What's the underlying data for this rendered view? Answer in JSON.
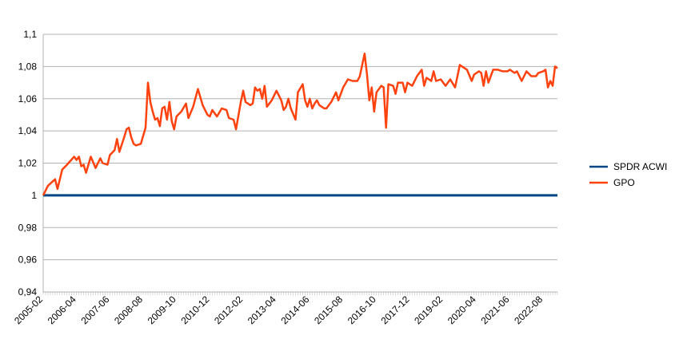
{
  "chart_data": {
    "type": "line",
    "title": "",
    "xlabel": "",
    "ylabel": "",
    "ylim": [
      0.94,
      1.1
    ],
    "y_ticks": [
      "1,1",
      "1,08",
      "1,06",
      "1,04",
      "1,02",
      "1",
      "0,98",
      "0,96",
      "0,94"
    ],
    "y_tick_values": [
      1.1,
      1.08,
      1.06,
      1.04,
      1.02,
      1.0,
      0.98,
      0.96,
      0.94
    ],
    "x_range": [
      "2005-02",
      "2023-02"
    ],
    "x_ticks": [
      "2005-02",
      "2006-04",
      "2007-06",
      "2008-08",
      "2009-10",
      "2010-12",
      "2012-02",
      "2013-04",
      "2014-06",
      "2015-08",
      "2016-10",
      "2017-12",
      "2019-02",
      "2020-04",
      "2021-06",
      "2022-08"
    ],
    "grid": "horizontal",
    "legend_position": "right",
    "series": [
      {
        "name": "SPDR ACWI",
        "color": "#004586",
        "points": [
          [
            "2005-02",
            1.0
          ],
          [
            "2023-02",
            1.0
          ]
        ]
      },
      {
        "name": "GPO",
        "color": "#ff420e",
        "points": [
          [
            "2005-02",
            1.0
          ],
          [
            "2005-04",
            1.006
          ],
          [
            "2005-07",
            1.01
          ],
          [
            "2005-08",
            1.004
          ],
          [
            "2005-10",
            1.016
          ],
          [
            "2005-12",
            1.019
          ],
          [
            "2006-03",
            1.024
          ],
          [
            "2006-04",
            1.022
          ],
          [
            "2006-05",
            1.024
          ],
          [
            "2006-06",
            1.018
          ],
          [
            "2006-07",
            1.019
          ],
          [
            "2006-08",
            1.014
          ],
          [
            "2006-10",
            1.024
          ],
          [
            "2006-12",
            1.017
          ],
          [
            "2007-02",
            1.023
          ],
          [
            "2007-03",
            1.02
          ],
          [
            "2007-05",
            1.019
          ],
          [
            "2007-06",
            1.025
          ],
          [
            "2007-08",
            1.028
          ],
          [
            "2007-09",
            1.035
          ],
          [
            "2007-10",
            1.027
          ],
          [
            "2007-12",
            1.036
          ],
          [
            "2008-01",
            1.041
          ],
          [
            "2008-02",
            1.042
          ],
          [
            "2008-03",
            1.036
          ],
          [
            "2008-04",
            1.032
          ],
          [
            "2008-05",
            1.031
          ],
          [
            "2008-07",
            1.032
          ],
          [
            "2008-09",
            1.042
          ],
          [
            "2008-10",
            1.07
          ],
          [
            "2008-11",
            1.058
          ],
          [
            "2008-12",
            1.052
          ],
          [
            "2009-01",
            1.047
          ],
          [
            "2009-02",
            1.048
          ],
          [
            "2009-03",
            1.043
          ],
          [
            "2009-04",
            1.054
          ],
          [
            "2009-05",
            1.055
          ],
          [
            "2009-06",
            1.047
          ],
          [
            "2009-07",
            1.058
          ],
          [
            "2009-08",
            1.046
          ],
          [
            "2009-09",
            1.041
          ],
          [
            "2009-10",
            1.049
          ],
          [
            "2009-12",
            1.052
          ],
          [
            "2010-02",
            1.057
          ],
          [
            "2010-03",
            1.048
          ],
          [
            "2010-05",
            1.055
          ],
          [
            "2010-07",
            1.066
          ],
          [
            "2010-09",
            1.056
          ],
          [
            "2010-11",
            1.05
          ],
          [
            "2010-12",
            1.049
          ],
          [
            "2011-01",
            1.053
          ],
          [
            "2011-03",
            1.049
          ],
          [
            "2011-05",
            1.054
          ],
          [
            "2011-07",
            1.053
          ],
          [
            "2011-08",
            1.048
          ],
          [
            "2011-10",
            1.047
          ],
          [
            "2011-11",
            1.041
          ],
          [
            "2012-01",
            1.058
          ],
          [
            "2012-02",
            1.065
          ],
          [
            "2012-03",
            1.058
          ],
          [
            "2012-05",
            1.056
          ],
          [
            "2012-06",
            1.057
          ],
          [
            "2012-07",
            1.067
          ],
          [
            "2012-08",
            1.065
          ],
          [
            "2012-09",
            1.066
          ],
          [
            "2012-10",
            1.06
          ],
          [
            "2012-11",
            1.068
          ],
          [
            "2012-12",
            1.055
          ],
          [
            "2013-02",
            1.059
          ],
          [
            "2013-04",
            1.065
          ],
          [
            "2013-06",
            1.059
          ],
          [
            "2013-07",
            1.053
          ],
          [
            "2013-08",
            1.055
          ],
          [
            "2013-09",
            1.06
          ],
          [
            "2013-10",
            1.054
          ],
          [
            "2013-12",
            1.047
          ],
          [
            "2014-01",
            1.064
          ],
          [
            "2014-03",
            1.069
          ],
          [
            "2014-04",
            1.059
          ],
          [
            "2014-05",
            1.055
          ],
          [
            "2014-06",
            1.06
          ],
          [
            "2014-07",
            1.054
          ],
          [
            "2014-08",
            1.057
          ],
          [
            "2014-09",
            1.059
          ],
          [
            "2014-10",
            1.056
          ],
          [
            "2014-12",
            1.054
          ],
          [
            "2015-01",
            1.054
          ],
          [
            "2015-03",
            1.058
          ],
          [
            "2015-05",
            1.064
          ],
          [
            "2015-06",
            1.059
          ],
          [
            "2015-08",
            1.067
          ],
          [
            "2015-10",
            1.072
          ],
          [
            "2015-12",
            1.071
          ],
          [
            "2016-02",
            1.071
          ],
          [
            "2016-03",
            1.074
          ],
          [
            "2016-05",
            1.088
          ],
          [
            "2016-06",
            1.075
          ],
          [
            "2016-07",
            1.059
          ],
          [
            "2016-08",
            1.067
          ],
          [
            "2016-09",
            1.052
          ],
          [
            "2016-10",
            1.064
          ],
          [
            "2016-12",
            1.068
          ],
          [
            "2017-01",
            1.067
          ],
          [
            "2017-02",
            1.042
          ],
          [
            "2017-03",
            1.069
          ],
          [
            "2017-05",
            1.068
          ],
          [
            "2017-06",
            1.063
          ],
          [
            "2017-07",
            1.07
          ],
          [
            "2017-09",
            1.07
          ],
          [
            "2017-10",
            1.064
          ],
          [
            "2017-11",
            1.07
          ],
          [
            "2018-01",
            1.068
          ],
          [
            "2018-03",
            1.074
          ],
          [
            "2018-05",
            1.078
          ],
          [
            "2018-06",
            1.068
          ],
          [
            "2018-07",
            1.073
          ],
          [
            "2018-09",
            1.071
          ],
          [
            "2018-10",
            1.077
          ],
          [
            "2018-11",
            1.071
          ],
          [
            "2019-01",
            1.072
          ],
          [
            "2019-03",
            1.068
          ],
          [
            "2019-05",
            1.072
          ],
          [
            "2019-07",
            1.067
          ],
          [
            "2019-08",
            1.074
          ],
          [
            "2019-09",
            1.081
          ],
          [
            "2019-10",
            1.08
          ],
          [
            "2019-12",
            1.078
          ],
          [
            "2020-02",
            1.071
          ],
          [
            "2020-03",
            1.075
          ],
          [
            "2020-05",
            1.077
          ],
          [
            "2020-06",
            1.076
          ],
          [
            "2020-07",
            1.068
          ],
          [
            "2020-08",
            1.077
          ],
          [
            "2020-09",
            1.07
          ],
          [
            "2020-11",
            1.078
          ],
          [
            "2021-01",
            1.078
          ],
          [
            "2021-03",
            1.077
          ],
          [
            "2021-05",
            1.077
          ],
          [
            "2021-06",
            1.078
          ],
          [
            "2021-08",
            1.076
          ],
          [
            "2021-09",
            1.077
          ],
          [
            "2021-11",
            1.071
          ],
          [
            "2022-01",
            1.077
          ],
          [
            "2022-03",
            1.074
          ],
          [
            "2022-05",
            1.074
          ],
          [
            "2022-06",
            1.076
          ],
          [
            "2022-08",
            1.077
          ],
          [
            "2022-09",
            1.078
          ],
          [
            "2022-10",
            1.067
          ],
          [
            "2022-11",
            1.071
          ],
          [
            "2022-12",
            1.068
          ],
          [
            "2023-01",
            1.08
          ],
          [
            "2023-02",
            1.079
          ]
        ]
      }
    ]
  }
}
